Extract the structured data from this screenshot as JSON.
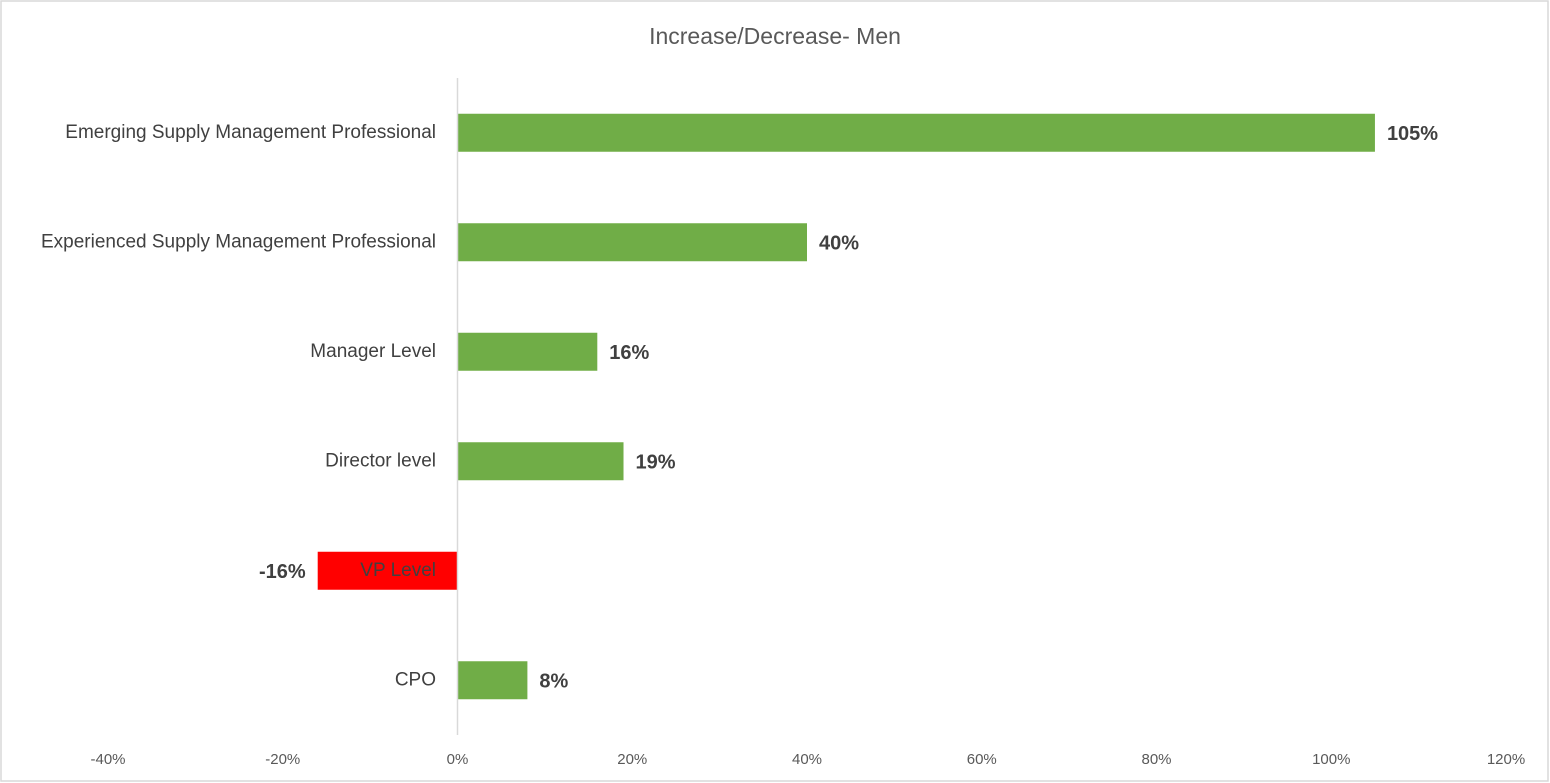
{
  "chart_data": {
    "type": "barh",
    "title": "Increase/Decrease-  Men",
    "categories": [
      "Emerging Supply Management Professional",
      "Experienced Supply Management Professional",
      "Manager Level",
      "Director level",
      "VP Level",
      "CPO"
    ],
    "values": [
      105,
      40,
      16,
      19,
      -16,
      8
    ],
    "value_labels": [
      "105%",
      "40%",
      "16%",
      "19%",
      "-16%",
      "8%"
    ],
    "colors": [
      "#70ad47",
      "#70ad47",
      "#70ad47",
      "#70ad47",
      "#ff0000",
      "#70ad47"
    ],
    "xlim": [
      -40,
      120
    ],
    "xticks": [
      {
        "value": -40,
        "label": "-40%"
      },
      {
        "value": -20,
        "label": "-20%"
      },
      {
        "value": 0,
        "label": "0%"
      },
      {
        "value": 20,
        "label": "20%"
      },
      {
        "value": 40,
        "label": "40%"
      },
      {
        "value": 60,
        "label": "60%"
      },
      {
        "value": 80,
        "label": "80%"
      },
      {
        "value": 100,
        "label": "100%"
      },
      {
        "value": 120,
        "label": "120%"
      }
    ],
    "grid": false
  }
}
